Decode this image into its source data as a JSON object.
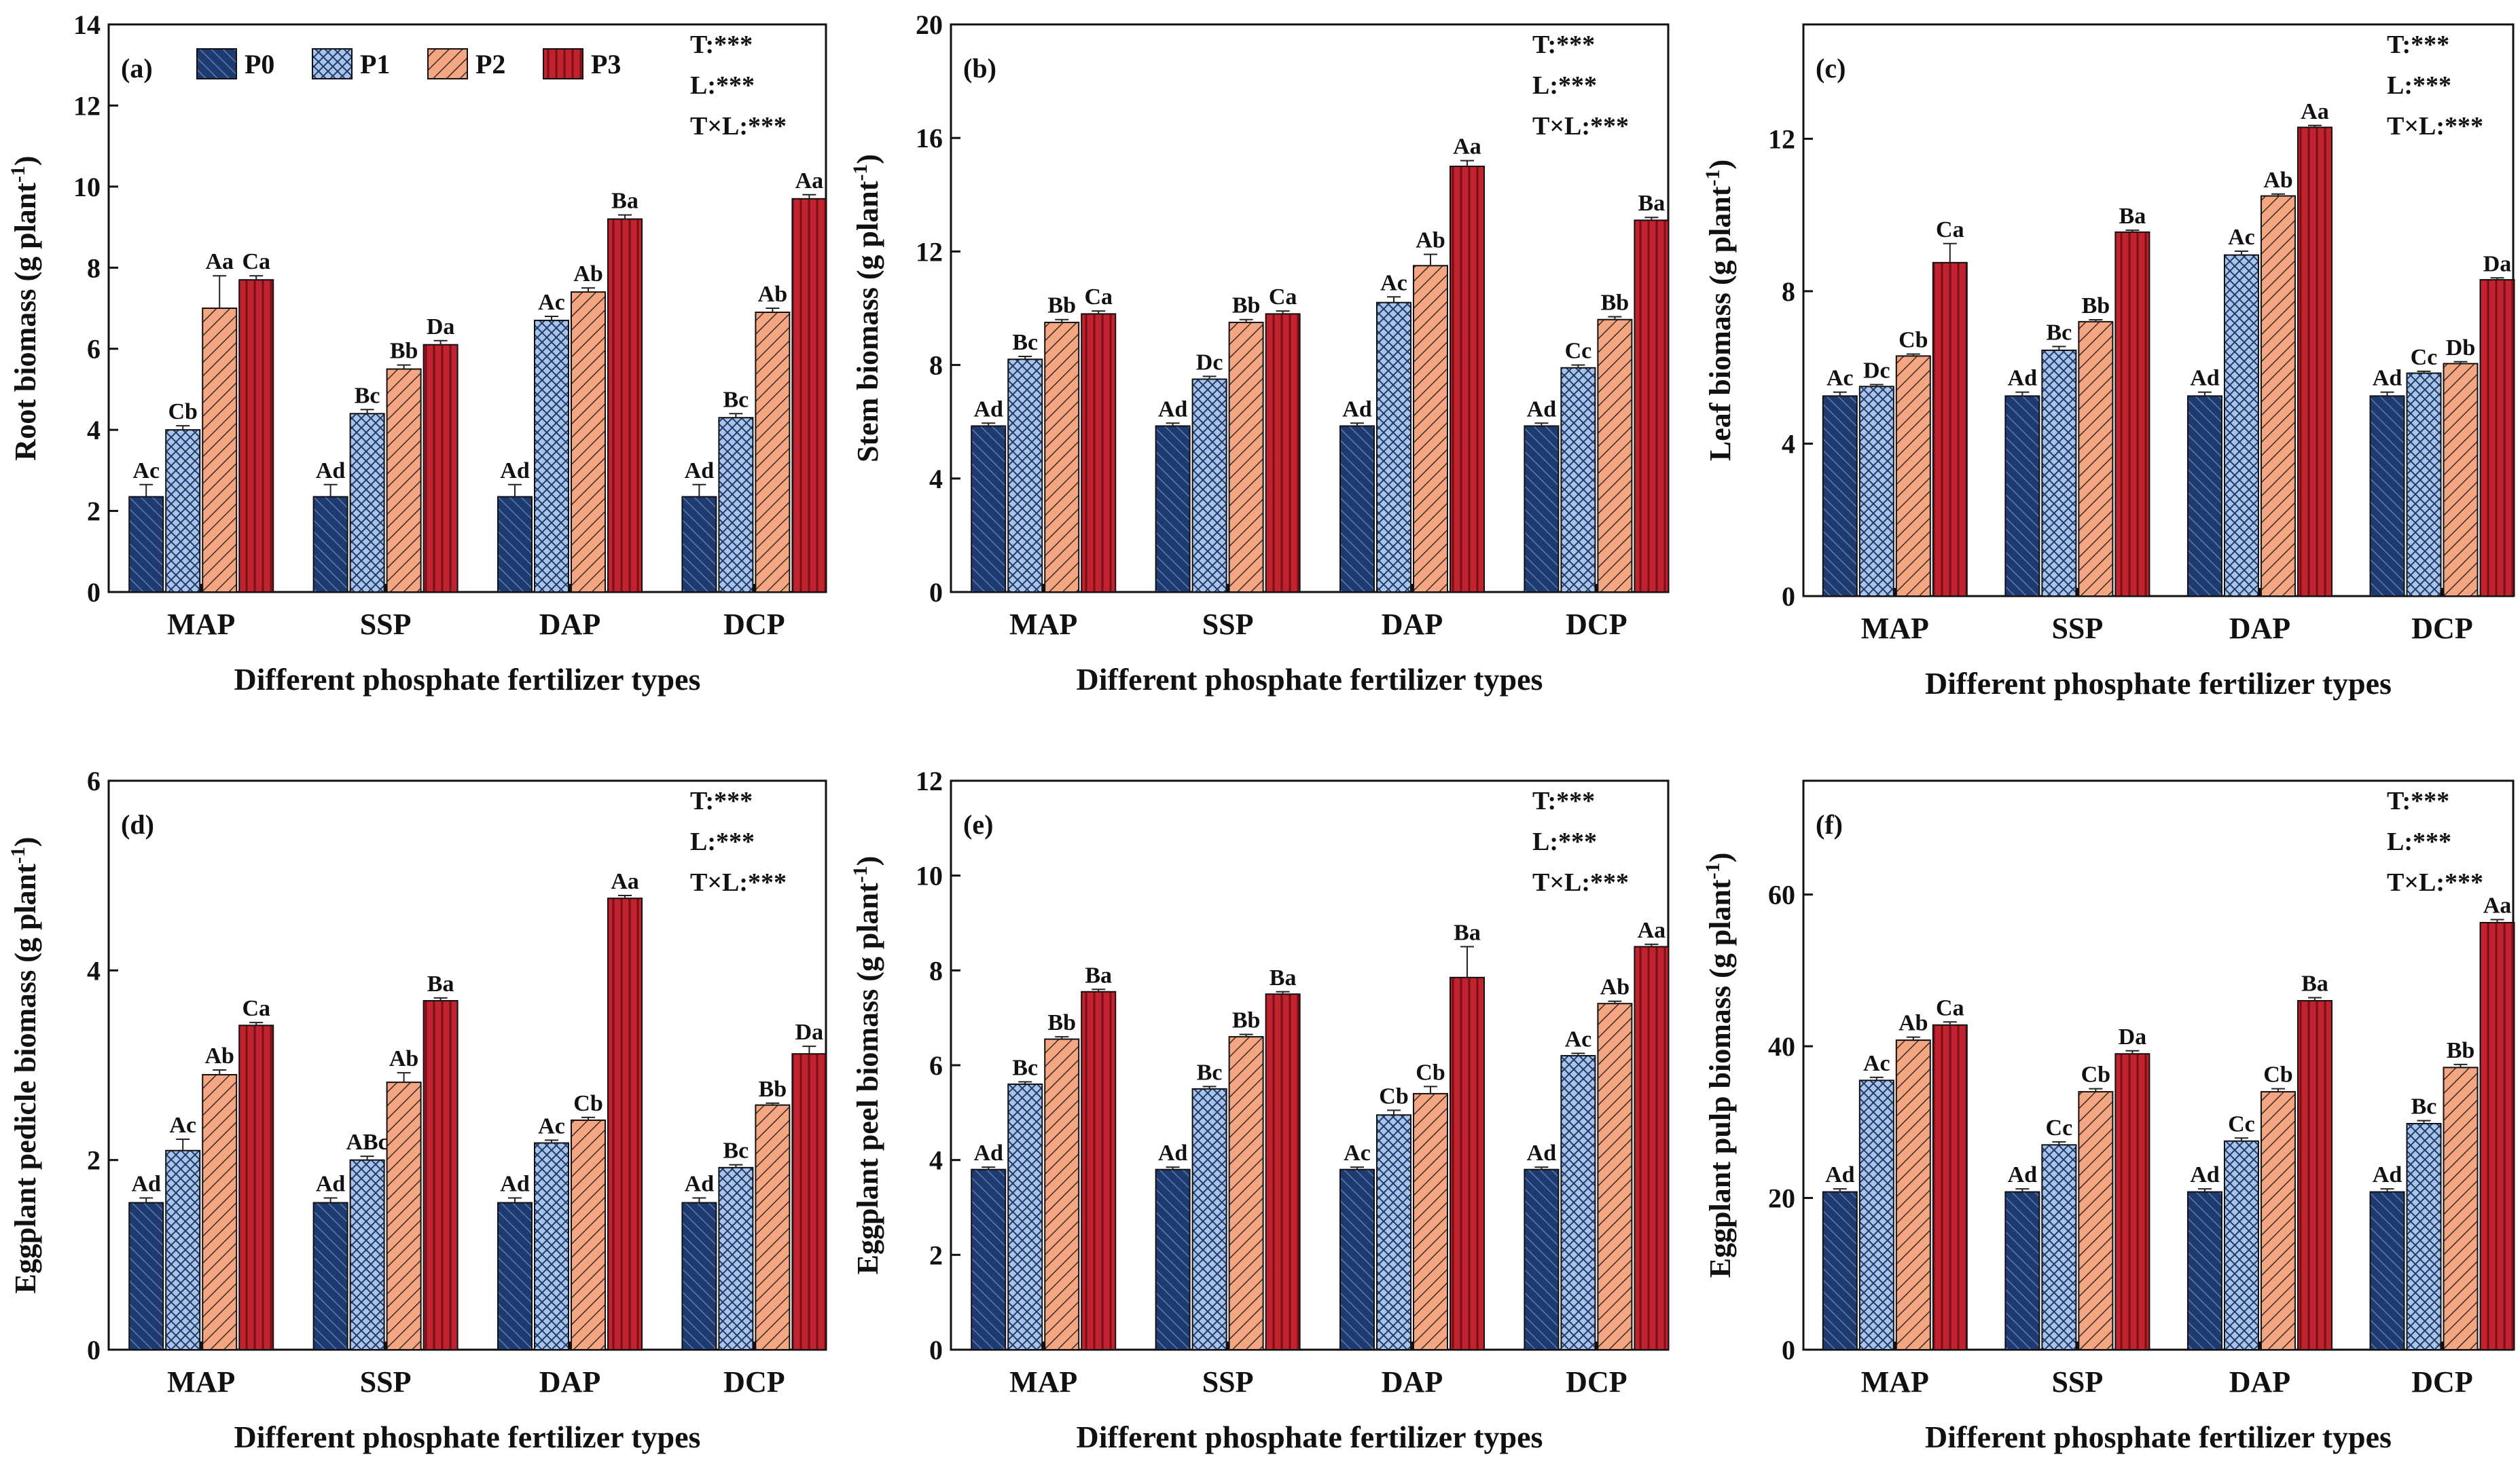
{
  "colors": {
    "P0": "#1f3a6e",
    "P1": "#a9c4e6",
    "P2": "#f4a582",
    "P3": "#c0222e",
    "axis": "#111111",
    "error": "#222222"
  },
  "legend": [
    "P0",
    "P1",
    "P2",
    "P3"
  ],
  "chart_data": [
    {
      "type": "bar",
      "panel": "(a)",
      "ylabel": "Root biomass (g plant",
      "ylabel_sup": "-1",
      "ylabel_close": ")",
      "xlabel": "Different phosphate fertilizer types",
      "categories": [
        "MAP",
        "SSP",
        "DAP",
        "DCP"
      ],
      "ylim": [
        0,
        14
      ],
      "yticks": [
        0,
        2,
        4,
        6,
        8,
        10,
        12,
        14
      ],
      "stats": [
        "T:***",
        "L:***",
        "T×L:***"
      ],
      "series": [
        {
          "name": "P0",
          "values": [
            2.35,
            2.35,
            2.35,
            2.35
          ],
          "errors": [
            0.3,
            0.3,
            0.3,
            0.3
          ],
          "labels": [
            "Ac",
            "Ad",
            "Ad",
            "Ad"
          ]
        },
        {
          "name": "P1",
          "values": [
            4.0,
            4.4,
            6.7,
            4.3
          ],
          "errors": [
            0.1,
            0.1,
            0.1,
            0.1
          ],
          "labels": [
            "Cb",
            "Bc",
            "Ac",
            "Bc"
          ]
        },
        {
          "name": "P2",
          "values": [
            7.0,
            5.5,
            7.4,
            6.9
          ],
          "errors": [
            0.8,
            0.1,
            0.1,
            0.1
          ],
          "labels": [
            "Aa",
            "Bb",
            "Ab",
            "Ab"
          ]
        },
        {
          "name": "P3",
          "values": [
            7.7,
            6.1,
            9.2,
            9.7
          ],
          "errors": [
            0.1,
            0.1,
            0.1,
            0.1
          ],
          "labels": [
            "Ca",
            "Da",
            "Ba",
            "Aa"
          ]
        }
      ]
    },
    {
      "type": "bar",
      "panel": "(b)",
      "ylabel": "Stem biomass (g plant",
      "ylabel_sup": "-1",
      "ylabel_close": ")",
      "xlabel": "Different phosphate fertilizer types",
      "categories": [
        "MAP",
        "SSP",
        "DAP",
        "DCP"
      ],
      "ylim": [
        0,
        20
      ],
      "yticks": [
        0,
        4,
        8,
        12,
        16,
        20
      ],
      "stats": [
        "T:***",
        "L:***",
        "T×L:***"
      ],
      "series": [
        {
          "name": "P0",
          "values": [
            5.85,
            5.85,
            5.85,
            5.85
          ],
          "errors": [
            0.1,
            0.1,
            0.1,
            0.1
          ],
          "labels": [
            "Ad",
            "Ad",
            "Ad",
            "Ad"
          ]
        },
        {
          "name": "P1",
          "values": [
            8.2,
            7.5,
            10.2,
            7.9
          ],
          "errors": [
            0.1,
            0.1,
            0.2,
            0.1
          ],
          "labels": [
            "Bc",
            "Dc",
            "Ac",
            "Cc"
          ]
        },
        {
          "name": "P2",
          "values": [
            9.5,
            9.5,
            11.5,
            9.6
          ],
          "errors": [
            0.1,
            0.1,
            0.4,
            0.1
          ],
          "labels": [
            "Bb",
            "Bb",
            "Ab",
            "Bb"
          ]
        },
        {
          "name": "P3",
          "values": [
            9.8,
            9.8,
            15.0,
            13.1
          ],
          "errors": [
            0.1,
            0.1,
            0.2,
            0.1
          ],
          "labels": [
            "Ca",
            "Ca",
            "Aa",
            "Ba"
          ]
        }
      ]
    },
    {
      "type": "bar",
      "panel": "(c)",
      "ylabel": "Leaf biomass (g plant",
      "ylabel_sup": "-1",
      "ylabel_close": ")",
      "xlabel": "Different phosphate fertilizer types",
      "categories": [
        "MAP",
        "SSP",
        "DAP",
        "DCP"
      ],
      "ylim": [
        0,
        15
      ],
      "yticks": [
        0,
        4,
        8,
        12
      ],
      "stats": [
        "T:***",
        "L:***",
        "T×L:***"
      ],
      "series": [
        {
          "name": "P0",
          "values": [
            5.25,
            5.25,
            5.25,
            5.25
          ],
          "errors": [
            0.1,
            0.1,
            0.1,
            0.1
          ],
          "labels": [
            "Ac",
            "Ad",
            "Ad",
            "Ad"
          ]
        },
        {
          "name": "P1",
          "values": [
            5.5,
            6.45,
            8.95,
            5.85
          ],
          "errors": [
            0.05,
            0.1,
            0.1,
            0.05
          ],
          "labels": [
            "Dc",
            "Bc",
            "Ac",
            "Cc"
          ]
        },
        {
          "name": "P2",
          "values": [
            6.3,
            7.2,
            10.5,
            6.1
          ],
          "errors": [
            0.05,
            0.05,
            0.05,
            0.05
          ],
          "labels": [
            "Cb",
            "Bb",
            "Ab",
            "Db"
          ]
        },
        {
          "name": "P3",
          "values": [
            8.75,
            9.55,
            12.3,
            8.3
          ],
          "errors": [
            0.5,
            0.05,
            0.05,
            0.05
          ],
          "labels": [
            "Ca",
            "Ba",
            "Aa",
            "Da"
          ]
        }
      ]
    },
    {
      "type": "bar",
      "panel": "(d)",
      "ylabel": "Eggplant pedicle biomass (g plant",
      "ylabel_sup": "-1",
      "ylabel_close": ")",
      "xlabel": "Different phosphate fertilizer types",
      "categories": [
        "MAP",
        "SSP",
        "DAP",
        "DCP"
      ],
      "ylim": [
        0,
        6
      ],
      "yticks": [
        0,
        2,
        4,
        6
      ],
      "stats": [
        "T:***",
        "L:***",
        "T×L:***"
      ],
      "series": [
        {
          "name": "P0",
          "values": [
            1.55,
            1.55,
            1.55,
            1.55
          ],
          "errors": [
            0.05,
            0.05,
            0.05,
            0.05
          ],
          "labels": [
            "Ad",
            "Ad",
            "Ad",
            "Ad"
          ]
        },
        {
          "name": "P1",
          "values": [
            2.1,
            2.0,
            2.18,
            1.92
          ],
          "errors": [
            0.12,
            0.04,
            0.03,
            0.03
          ],
          "labels": [
            "Ac",
            "ABc",
            "Ac",
            "Bc"
          ]
        },
        {
          "name": "P2",
          "values": [
            2.9,
            2.82,
            2.42,
            2.58
          ],
          "errors": [
            0.05,
            0.1,
            0.03,
            0.02
          ],
          "labels": [
            "Ab",
            "Ab",
            "Cb",
            "Bb"
          ]
        },
        {
          "name": "P3",
          "values": [
            3.42,
            3.68,
            4.76,
            3.12
          ],
          "errors": [
            0.03,
            0.03,
            0.03,
            0.08
          ],
          "labels": [
            "Ca",
            "Ba",
            "Aa",
            "Da"
          ]
        }
      ]
    },
    {
      "type": "bar",
      "panel": "(e)",
      "ylabel": "Eggplant peel biomass (g plant",
      "ylabel_sup": "-1",
      "ylabel_close": ")",
      "xlabel": "Different phosphate fertilizer types",
      "categories": [
        "MAP",
        "SSP",
        "DAP",
        "DCP"
      ],
      "ylim": [
        0,
        12
      ],
      "yticks": [
        0,
        2,
        4,
        6,
        8,
        10,
        12
      ],
      "stats": [
        "T:***",
        "L:***",
        "T×L:***"
      ],
      "series": [
        {
          "name": "P0",
          "values": [
            3.8,
            3.8,
            3.8,
            3.8
          ],
          "errors": [
            0.05,
            0.05,
            0.05,
            0.05
          ],
          "labels": [
            "Ad",
            "Ad",
            "Ac",
            "Ad"
          ]
        },
        {
          "name": "P1",
          "values": [
            5.6,
            5.5,
            4.95,
            6.2
          ],
          "errors": [
            0.05,
            0.05,
            0.1,
            0.05
          ],
          "labels": [
            "Bc",
            "Bc",
            "Cb",
            "Ac"
          ]
        },
        {
          "name": "P2",
          "values": [
            6.55,
            6.6,
            5.4,
            7.3
          ],
          "errors": [
            0.05,
            0.05,
            0.15,
            0.05
          ],
          "labels": [
            "Bb",
            "Bb",
            "Cb",
            "Ab"
          ]
        },
        {
          "name": "P3",
          "values": [
            7.55,
            7.5,
            7.85,
            8.5
          ],
          "errors": [
            0.05,
            0.05,
            0.65,
            0.05
          ],
          "labels": [
            "Ba",
            "Ba",
            "Ba",
            "Aa"
          ]
        }
      ]
    },
    {
      "type": "bar",
      "panel": "(f)",
      "ylabel": "Eggplant pulp biomass (g plant",
      "ylabel_sup": "-1",
      "ylabel_close": ")",
      "xlabel": "Different phosphate fertilizer types",
      "categories": [
        "MAP",
        "SSP",
        "DAP",
        "DCP"
      ],
      "ylim": [
        0,
        75
      ],
      "yticks": [
        0,
        20,
        40,
        60
      ],
      "stats": [
        "T:***",
        "L:***",
        "T×L:***"
      ],
      "series": [
        {
          "name": "P0",
          "values": [
            20.8,
            20.8,
            20.8,
            20.8
          ],
          "errors": [
            0.4,
            0.4,
            0.4,
            0.4
          ],
          "labels": [
            "Ad",
            "Ad",
            "Ad",
            "Ad"
          ]
        },
        {
          "name": "P1",
          "values": [
            35.5,
            27.0,
            27.5,
            29.8
          ],
          "errors": [
            0.4,
            0.4,
            0.4,
            0.4
          ],
          "labels": [
            "Ac",
            "Cc",
            "Cc",
            "Bc"
          ]
        },
        {
          "name": "P2",
          "values": [
            40.8,
            34.0,
            34.0,
            37.2
          ],
          "errors": [
            0.4,
            0.4,
            0.4,
            0.4
          ],
          "labels": [
            "Ab",
            "Cb",
            "Cb",
            "Bb"
          ]
        },
        {
          "name": "P3",
          "values": [
            42.8,
            39.0,
            46.0,
            56.3
          ],
          "errors": [
            0.4,
            0.4,
            0.4,
            0.4
          ],
          "labels": [
            "Ca",
            "Da",
            "Ba",
            "Aa"
          ]
        }
      ]
    }
  ]
}
